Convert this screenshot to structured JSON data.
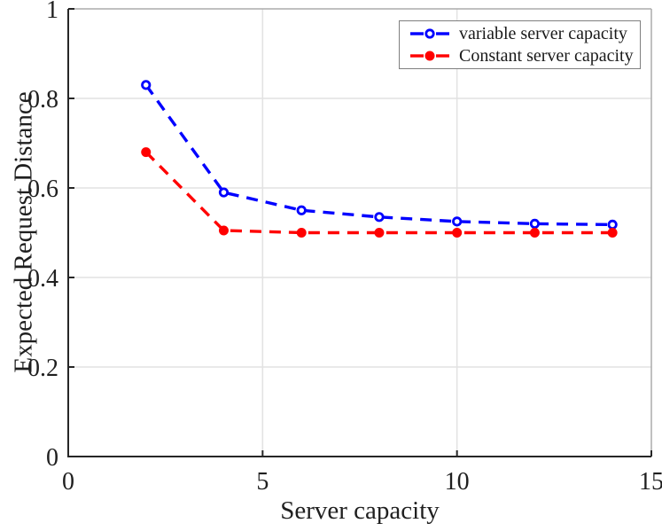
{
  "figure": {
    "background": "#ffffff"
  },
  "colors": {
    "grid": "#e2e2e2",
    "axis": "#262626",
    "box": "#ababab",
    "tick_label": "#1f1f1f",
    "legend_border": "#7f7f7f",
    "legend_text": "#1a1a1a"
  },
  "chart_data": {
    "type": "line",
    "title": "",
    "xlabel": "Server capacity",
    "ylabel": "Expected Request Distance",
    "xlim": [
      0,
      15
    ],
    "ylim": [
      0,
      1
    ],
    "x_ticks": [
      0,
      5,
      10,
      15
    ],
    "x_tick_labels": [
      "0",
      "5",
      "10",
      "15"
    ],
    "y_ticks": [
      0,
      0.2,
      0.4,
      0.6,
      0.8,
      1
    ],
    "y_tick_labels": [
      "0",
      "0.2",
      "0.4",
      "0.6",
      "0.8",
      "1"
    ],
    "grid": true,
    "legend_position": "top-right",
    "x": [
      2,
      4,
      6,
      8,
      10,
      12,
      14
    ],
    "series": [
      {
        "name": "variable server capacity",
        "color": "#0000ff",
        "linestyle": "dashed",
        "marker": "open-circle",
        "values": [
          0.83,
          0.59,
          0.55,
          0.535,
          0.525,
          0.52,
          0.518
        ]
      },
      {
        "name": "Constant server capacity",
        "color": "#ff0000",
        "linestyle": "dashed",
        "marker": "filled-circle",
        "values": [
          0.68,
          0.505,
          0.5,
          0.5,
          0.5,
          0.5,
          0.5
        ]
      }
    ]
  }
}
